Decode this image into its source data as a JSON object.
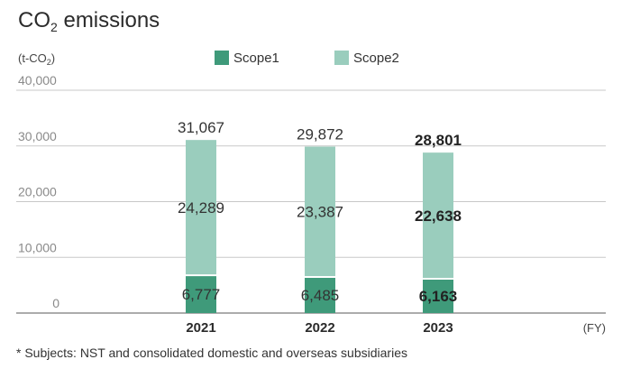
{
  "page": {
    "title_main": "CO",
    "title_sub": "2",
    "title_rest": " emissions",
    "unit_open": "(t-CO",
    "unit_sub": "2",
    "unit_close": ")",
    "fy_label": "(FY)",
    "note": "* Subjects: NST and consolidated domestic and overseas subsidiaries"
  },
  "chart_data": {
    "type": "bar",
    "stacked": true,
    "categories": [
      "2021",
      "2022",
      "2023"
    ],
    "series": [
      {
        "name": "Scope1",
        "values": [
          6777,
          6485,
          6163
        ],
        "color": "#3f9a7a"
      },
      {
        "name": "Scope2",
        "values": [
          24289,
          23387,
          22638
        ],
        "color": "#9acdbd"
      }
    ],
    "totals": [
      31067,
      29872,
      28801
    ],
    "value_labels": {
      "Scope1": [
        "6,777",
        "6,485",
        "6,163"
      ],
      "Scope2": [
        "24,289",
        "23,387",
        "22,638"
      ],
      "totals": [
        "31,067",
        "29,872",
        "28,801"
      ]
    },
    "y_ticks": [
      "0",
      "10,000",
      "20,000",
      "30,000",
      "40,000"
    ],
    "ylim": [
      0,
      40000
    ],
    "grid": true,
    "legend_position": "top",
    "highlight_category": "2023"
  }
}
